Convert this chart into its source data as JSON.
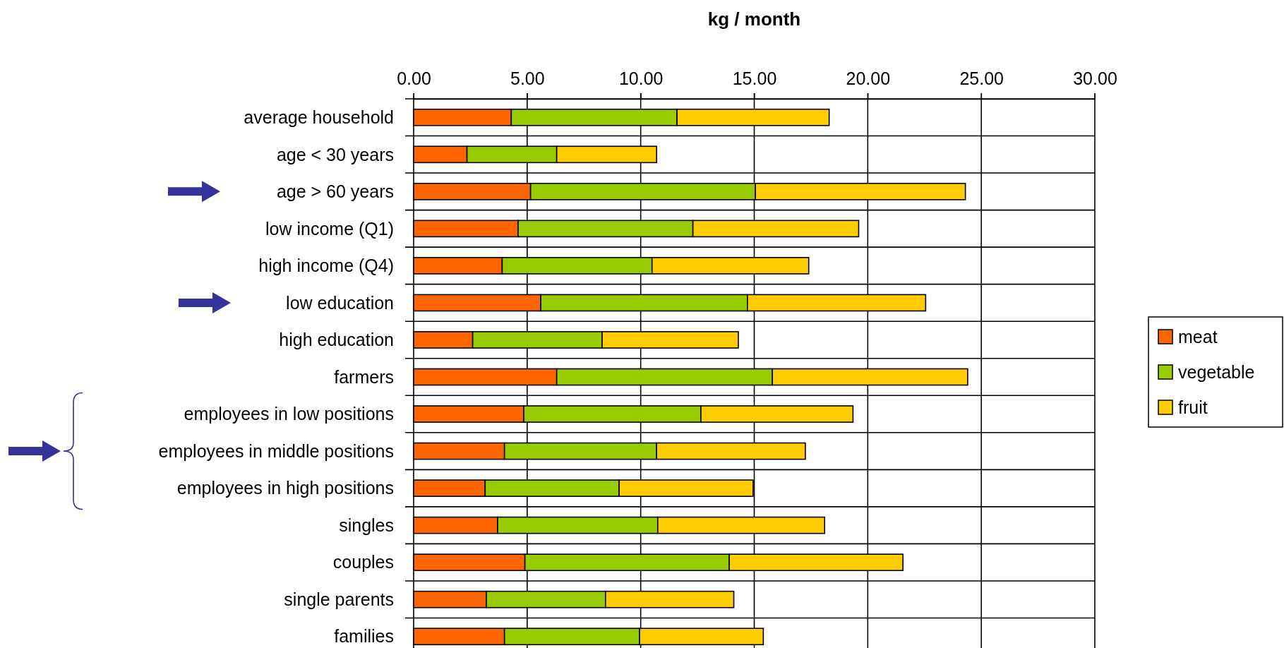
{
  "chart_data": {
    "type": "bar",
    "orientation": "horizontal",
    "stacked": true,
    "xlabel": "kg / month",
    "categories": [
      "average household",
      "age < 30 years",
      "age > 60 years",
      "low income (Q1)",
      "high income (Q4)",
      "low education",
      "high education",
      "farmers",
      "employees in low positions",
      "employees in middle positions",
      "employees in high positions",
      "singles",
      "couples",
      "single parents",
      "families"
    ],
    "series": [
      {
        "name": "meat",
        "color": "#ff6600",
        "values": [
          4.3,
          2.35,
          5.15,
          4.6,
          3.9,
          5.6,
          2.6,
          6.3,
          4.85,
          4.0,
          3.15,
          3.7,
          4.9,
          3.2,
          4.0
        ]
      },
      {
        "name": "vegetable",
        "color": "#99cc00",
        "values": [
          7.3,
          3.95,
          9.9,
          7.7,
          6.6,
          9.1,
          5.7,
          9.5,
          7.8,
          6.7,
          5.9,
          7.05,
          9.0,
          5.25,
          5.95
        ]
      },
      {
        "name": "fruit",
        "color": "#ffcc00",
        "values": [
          6.7,
          4.4,
          9.25,
          7.3,
          6.9,
          7.85,
          6.0,
          8.6,
          6.7,
          6.55,
          5.9,
          7.35,
          7.65,
          5.65,
          5.45
        ]
      }
    ],
    "xlim": [
      0,
      30
    ],
    "xticks": [
      {
        "value": 0,
        "label": "0.00"
      },
      {
        "value": 5,
        "label": "5.00"
      },
      {
        "value": 10,
        "label": "10.00"
      },
      {
        "value": 15,
        "label": "15.00"
      },
      {
        "value": 20,
        "label": "20.00"
      },
      {
        "value": 25,
        "label": "25.00"
      },
      {
        "value": 30,
        "label": "30.00"
      }
    ],
    "grid": true,
    "legend": "right"
  }
}
